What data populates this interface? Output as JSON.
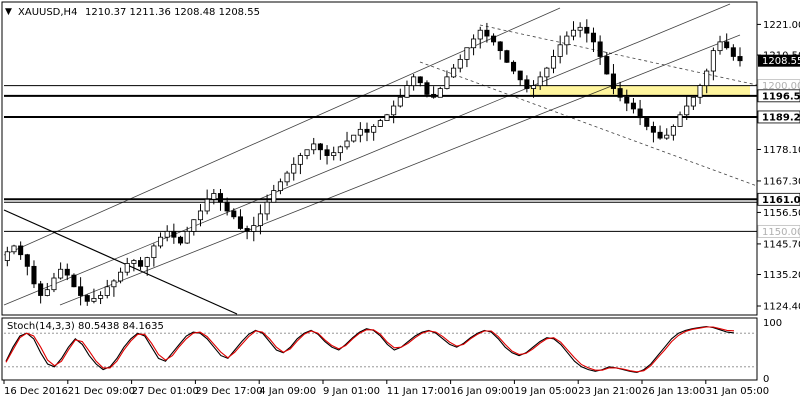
{
  "header": {
    "symbol": "XAUUSD,H4",
    "ohlc": "1210.37 1211.36 1208.48 1208.55"
  },
  "chart_data": [
    {
      "type": "candlestick",
      "grid": false,
      "ylim": [
        1122,
        1228
      ],
      "x_labels": [
        "16 Dec 2016",
        "21 Dec 09:00",
        "27 Dec 01:00",
        "29 Dec 17:00",
        "4 Jan 09:00",
        "9 Jan 01:00",
        "11 Jan 17:00",
        "16 Jan 09:00",
        "19 Jan 05:00",
        "23 Jan 21:00",
        "26 Jan 13:00",
        "31 Jan 05:00"
      ],
      "y_ticks": [
        1221.0,
        1210.5,
        1189.25,
        1178.1,
        1167.3,
        1156.5,
        1145.7,
        1135.2,
        1124.4
      ],
      "price_path": [
        1140,
        1143,
        1145,
        1142,
        1138,
        1132,
        1128,
        1130,
        1134,
        1137,
        1135,
        1131,
        1128,
        1126,
        1127,
        1128,
        1131,
        1133,
        1136,
        1139,
        1140,
        1138,
        1141,
        1145,
        1148,
        1150,
        1148,
        1146,
        1150,
        1154,
        1157,
        1161,
        1163,
        1160,
        1157,
        1155,
        1151,
        1150,
        1152,
        1156,
        1160,
        1164,
        1167,
        1170,
        1173,
        1176,
        1178,
        1180,
        1178,
        1176,
        1177,
        1179,
        1181,
        1183,
        1185,
        1184,
        1186,
        1188,
        1190,
        1193,
        1196,
        1200,
        1203,
        1201,
        1197,
        1196,
        1199,
        1203,
        1206,
        1209,
        1213,
        1216,
        1219,
        1217,
        1215,
        1212,
        1208,
        1205,
        1202,
        1199,
        1200,
        1203,
        1206,
        1210,
        1214,
        1217,
        1219,
        1220,
        1218,
        1215,
        1210,
        1204,
        1199,
        1196,
        1194,
        1192,
        1189,
        1186,
        1184,
        1182,
        1183,
        1186,
        1190,
        1193,
        1196,
        1200,
        1205,
        1212,
        1215,
        1213,
        1210,
        1208.55
      ],
      "levels": [
        {
          "label": "1200.00",
          "value": 1200.0,
          "style": "muted"
        },
        {
          "label": "1196.50",
          "value": 1196.5,
          "style": "bold"
        },
        {
          "label": "1189.25",
          "value": 1189.25,
          "style": "bold"
        },
        {
          "label": "1161.00",
          "value": 1161.0,
          "style": "bold"
        },
        {
          "label": "1160.00",
          "value": 1160.0,
          "style": "hidden"
        },
        {
          "label": "1150.00",
          "value": 1150.0,
          "style": "muted"
        }
      ],
      "current_price": {
        "label": "1208.55",
        "value": 1208.55
      },
      "zone": {
        "from": 1196.5,
        "to": 1200.0,
        "color": "#fff59d"
      },
      "colors": {
        "up": "#ffffff",
        "down": "#000000",
        "wick": "#000000",
        "channel": "#000000"
      }
    },
    {
      "type": "line",
      "title": "Stoch(14,3,3) 80.5438 84.1635",
      "series": [
        {
          "color": "#000000",
          "values": [
            30,
            55,
            75,
            80,
            70,
            45,
            25,
            20,
            35,
            55,
            70,
            60,
            40,
            25,
            15,
            20,
            35,
            55,
            70,
            80,
            75,
            55,
            35,
            30,
            45,
            60,
            75,
            82,
            80,
            70,
            55,
            40,
            35,
            50,
            65,
            78,
            85,
            80,
            65,
            50,
            45,
            55,
            70,
            80,
            85,
            78,
            65,
            55,
            50,
            60,
            72,
            82,
            88,
            85,
            75,
            60,
            50,
            55,
            65,
            75,
            82,
            85,
            80,
            70,
            60,
            55,
            62,
            72,
            80,
            85,
            82,
            70,
            55,
            45,
            40,
            45,
            55,
            65,
            72,
            70,
            60,
            45,
            30,
            20,
            15,
            12,
            15,
            20,
            18,
            15,
            12,
            10,
            15,
            25,
            40,
            55,
            70,
            80,
            85,
            88,
            90,
            92,
            90,
            86,
            82,
            80.5
          ]
        },
        {
          "color": "#e00000",
          "values": [
            28,
            50,
            72,
            80,
            75,
            55,
            32,
            22,
            30,
            50,
            68,
            65,
            48,
            30,
            18,
            18,
            30,
            50,
            66,
            78,
            78,
            62,
            42,
            32,
            40,
            56,
            70,
            80,
            82,
            74,
            60,
            46,
            36,
            46,
            60,
            74,
            84,
            82,
            70,
            55,
            46,
            52,
            66,
            78,
            84,
            80,
            68,
            58,
            52,
            58,
            70,
            80,
            86,
            86,
            78,
            64,
            54,
            55,
            62,
            72,
            80,
            84,
            82,
            74,
            64,
            57,
            60,
            70,
            78,
            84,
            84,
            74,
            60,
            48,
            42,
            44,
            52,
            62,
            70,
            72,
            64,
            50,
            36,
            24,
            18,
            14,
            14,
            18,
            18,
            16,
            13,
            11,
            13,
            22,
            36,
            50,
            65,
            76,
            83,
            87,
            89,
            91,
            91,
            88,
            85,
            84.2
          ]
        }
      ],
      "ylim": [
        0,
        100
      ],
      "y_ticks": [
        100,
        0
      ],
      "levels": [
        80,
        20
      ]
    }
  ]
}
